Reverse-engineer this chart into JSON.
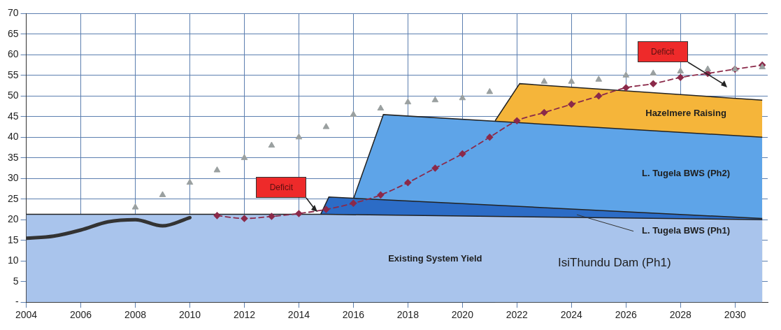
{
  "chart_data": {
    "type": "area",
    "xlim": [
      2004,
      2031.2
    ],
    "xticks": [
      2004,
      2006,
      2008,
      2010,
      2012,
      2014,
      2016,
      2018,
      2020,
      2022,
      2024,
      2026,
      2028,
      2030
    ],
    "ylim": [
      0,
      70
    ],
    "yticks": [
      {
        "value": 0,
        "label": "-"
      },
      5,
      10,
      15,
      20,
      25,
      30,
      35,
      40,
      45,
      50,
      55,
      60,
      65,
      70
    ],
    "grid": true,
    "legend": false,
    "series": [
      {
        "name": "Existing System Yield",
        "color": "#a9c4ec",
        "x": [
          2004,
          2015,
          2031
        ],
        "values": [
          21.3,
          21.3,
          20
        ]
      },
      {
        "name": "L. Tugela BWS (Ph1)",
        "type": "area",
        "color": "#2c6cc6",
        "x": [
          2014.8,
          2015.1,
          2031
        ],
        "values": [
          21.3,
          25.5,
          20.3
        ]
      },
      {
        "name": "L. Tugela BWS (Ph2)",
        "type": "area",
        "color": "#5ea4e8",
        "x": [
          2016,
          2017.1,
          2031
        ],
        "values": [
          25,
          45.5,
          40
        ]
      },
      {
        "name": "Hazelmere Raising",
        "type": "area",
        "color": "#f5b53a",
        "x": [
          2021.2,
          2022.1,
          2031
        ],
        "values": [
          44,
          53,
          49
        ]
      },
      {
        "type": "line",
        "color": "#333333",
        "marker": "none",
        "line_style": "solid",
        "x": [
          2004,
          2005,
          2006,
          2007,
          2008,
          2009,
          2010
        ],
        "values": [
          15.5,
          16,
          17.5,
          19.5,
          20,
          18.5,
          20.5
        ]
      },
      {
        "type": "line",
        "color": "#8b2a4a",
        "marker": "diamond",
        "line_style": "dashed",
        "x": [
          2011,
          2012,
          2013,
          2014,
          2015,
          2016,
          2017,
          2018,
          2019,
          2020,
          2021,
          2022,
          2023,
          2024,
          2025,
          2026,
          2027,
          2028,
          2029,
          2030,
          2031
        ],
        "values": [
          21,
          20.3,
          20.8,
          21.5,
          22.5,
          24,
          26,
          29,
          32.5,
          36,
          40,
          44,
          46,
          48,
          50,
          52,
          53,
          54.5,
          55.5,
          56.5,
          57.5
        ]
      },
      {
        "type": "scatter",
        "color": "#9aa0a0",
        "marker": "triangle",
        "x": [
          2008,
          2009,
          2010,
          2011,
          2012,
          2013,
          2014,
          2015,
          2016,
          2017,
          2018,
          2019,
          2020,
          2021,
          2023,
          2024,
          2025,
          2026,
          2027,
          2028,
          2029,
          2030,
          2031
        ],
        "values": [
          23,
          26,
          29,
          32,
          35,
          38,
          40,
          42.5,
          45.5,
          47,
          48.5,
          49,
          49.5,
          51,
          53.5,
          53.5,
          54,
          55,
          55.5,
          56,
          56.5,
          56.5,
          57
        ]
      }
    ],
    "annotations": [
      "Deficit",
      "Deficit",
      "IsiThundu Dam (Ph1)"
    ]
  }
}
